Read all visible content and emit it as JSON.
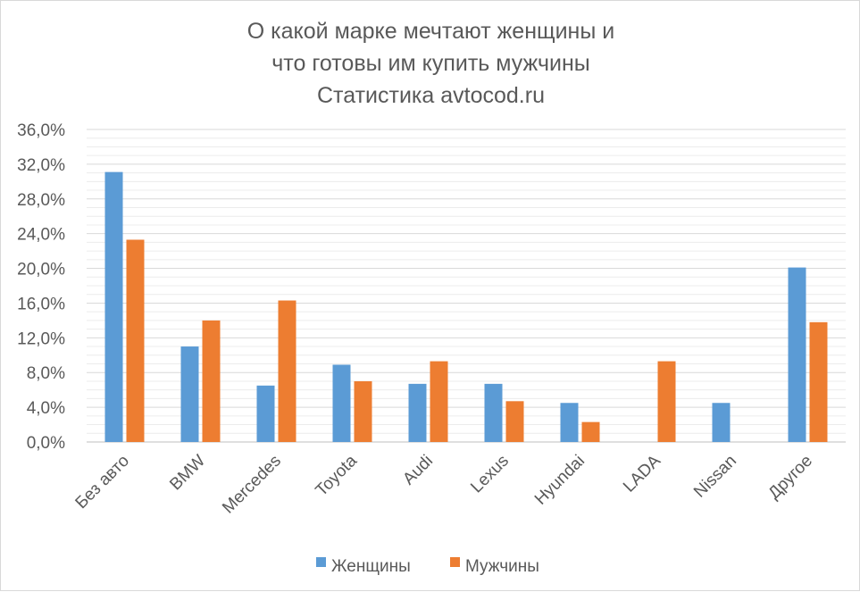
{
  "chart_data": {
    "type": "bar",
    "title_lines": [
      "О какой марке мечтают женщины и",
      "что готовы им купить мужчины",
      "Статистика avtocod.ru"
    ],
    "categories": [
      "Без авто",
      "BMW",
      "Mercedes",
      "Toyota",
      "Audi",
      "Lexus",
      "Hyundai",
      "LADA",
      "Nissan",
      "Другое"
    ],
    "series": [
      {
        "name": "Женщины",
        "color": "#5b9bd5",
        "values": [
          31.1,
          11.0,
          6.5,
          8.9,
          6.7,
          6.7,
          4.5,
          0.0,
          4.5,
          20.1
        ]
      },
      {
        "name": "Мужчины",
        "color": "#ed7d31",
        "values": [
          23.3,
          14.0,
          16.3,
          7.0,
          9.3,
          4.7,
          2.3,
          9.3,
          0.0,
          13.8
        ]
      }
    ],
    "ylim": [
      0,
      36
    ],
    "yticks": [
      "0,0%",
      "4,0%",
      "8,0%",
      "12,0%",
      "16,0%",
      "20,0%",
      "24,0%",
      "28,0%",
      "32,0%",
      "36,0%"
    ],
    "minor_gridlines": true,
    "legend_position": "bottom"
  }
}
